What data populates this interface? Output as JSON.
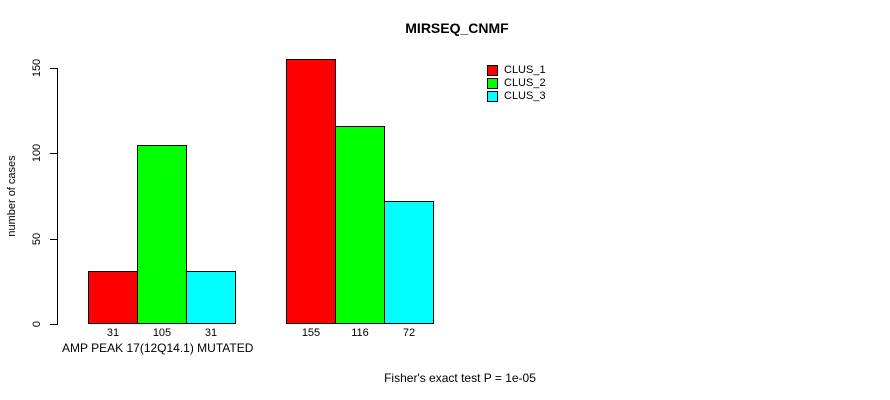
{
  "chart_data": {
    "type": "bar",
    "title": "MIRSEQ_CNMF",
    "ylabel": "number of cases",
    "xlabel": "AMP PEAK 17(12Q14.1) MUTATED",
    "annotation": "Fisher's exact test P = 1e-05",
    "ylim": [
      0,
      150
    ],
    "yticks": [
      0,
      50,
      100,
      150
    ],
    "grid": false,
    "legend_position": "top-right",
    "group_count": 2,
    "series": [
      {
        "name": "CLUS_1",
        "color": "#FF0000",
        "values": [
          31,
          155
        ]
      },
      {
        "name": "CLUS_2",
        "color": "#00FF00",
        "values": [
          105,
          116
        ]
      },
      {
        "name": "CLUS_3",
        "color": "#00FFFF",
        "values": [
          31,
          72
        ]
      }
    ]
  }
}
